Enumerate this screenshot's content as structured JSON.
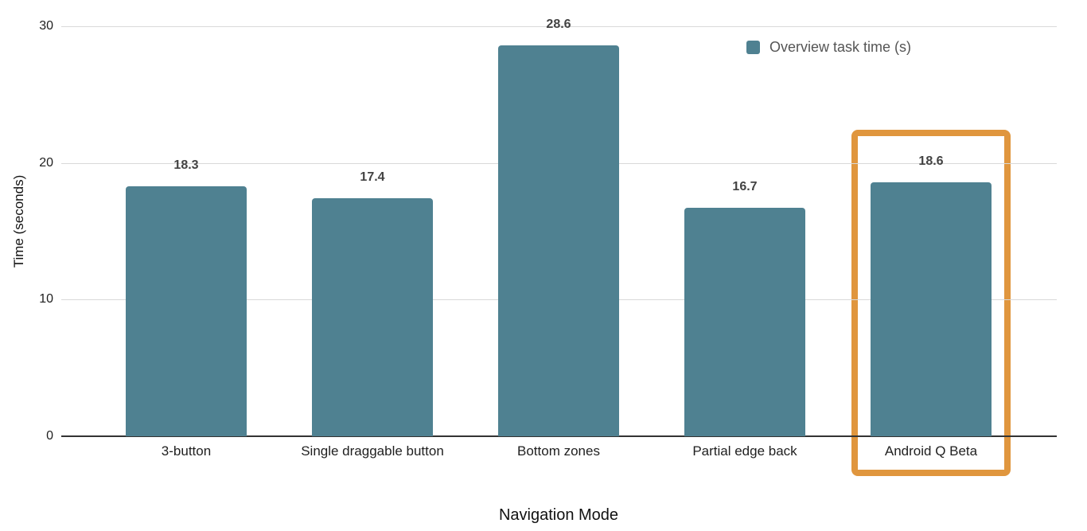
{
  "chart_data": {
    "type": "bar",
    "title": "",
    "categories": [
      "3-button",
      "Single draggable button",
      "Bottom zones",
      "Partial edge back",
      "Android Q Beta"
    ],
    "values": [
      18.3,
      17.4,
      28.6,
      16.7,
      18.6
    ],
    "value_labels": [
      "18.3",
      "17.4",
      "28.6",
      "16.7",
      "18.6"
    ],
    "series_name": "Overview task time (s)",
    "xlabel": "Navigation Mode",
    "ylabel": "Time (seconds)",
    "ylim": [
      0,
      30
    ],
    "yticks": [
      0,
      10,
      20,
      30
    ],
    "grid": true,
    "legend_position": "top-right",
    "bar_color": "#4F8191",
    "value_label_color": "#434343",
    "highlight": {
      "index": 4,
      "color": "#E0963E"
    }
  }
}
